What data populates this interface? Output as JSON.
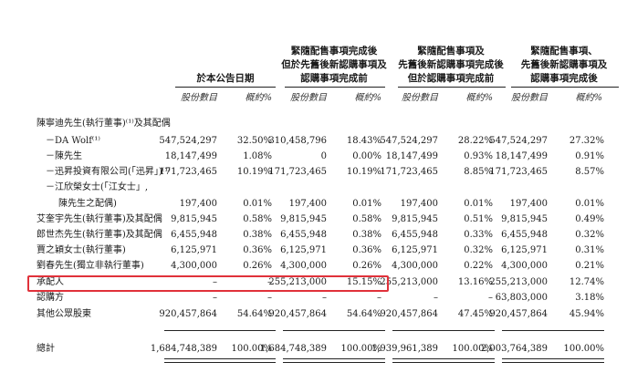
{
  "headers": [
    {
      "lines": [
        "於本公告日期"
      ]
    },
    {
      "lines": [
        "緊隨配售事項完成後",
        "但於先舊後新認購事項及",
        "認購事項完成前"
      ]
    },
    {
      "lines": [
        "緊隨配售事項及",
        "先舊後新認購事項完成後",
        "但於認購事項完成前"
      ]
    },
    {
      "lines": [
        "緊隨配售事項、",
        "先舊後新認購事項及",
        "認購事項完成後"
      ]
    }
  ],
  "subheaders": {
    "shares": "股份數目",
    "pct": "概約%"
  },
  "rows": [
    {
      "label": "陳寧迪先生(執行董事)⁽¹⁾及其配偶",
      "indent": 0,
      "vals": [
        "",
        "",
        "",
        "",
        "",
        "",
        "",
        ""
      ]
    },
    {
      "label": "－DA Wolf⁽¹⁾",
      "indent": 1,
      "vals": [
        "547,524,297",
        "32.50%",
        "310,458,796",
        "18.43%",
        "547,524,297",
        "28.22%",
        "547,524,297",
        "27.32%"
      ]
    },
    {
      "label": "－陳先生",
      "indent": 1,
      "vals": [
        "18,147,499",
        "1.08%",
        "0",
        "0.00%",
        "18,147,499",
        "0.93%",
        "18,147,499",
        "0.91%"
      ]
    },
    {
      "label": "－迅昇投資有限公司(「迅昇」)⁽¹⁾",
      "indent": 1,
      "vals": [
        "171,723,465",
        "10.19%",
        "171,723,465",
        "10.19%",
        "171,723,465",
        "8.85%",
        "171,723,465",
        "8.57%"
      ]
    },
    {
      "label": "－江欣榮女士(「江女士」,",
      "indent": 1,
      "vals": [
        "",
        "",
        "",
        "",
        "",
        "",
        "",
        ""
      ]
    },
    {
      "label": "陳先生之配偶)",
      "indent": 2,
      "vals": [
        "197,400",
        "0.01%",
        "197,400",
        "0.01%",
        "197,400",
        "0.01%",
        "197,400",
        "0.01%"
      ]
    },
    {
      "label": "艾奎宇先生(執行董事)及其配偶",
      "indent": 0,
      "vals": [
        "9,815,945",
        "0.58%",
        "9,815,945",
        "0.58%",
        "9,815,945",
        "0.51%",
        "9,815,945",
        "0.49%"
      ]
    },
    {
      "label": "郎世杰先生(執行董事)及其配偶",
      "indent": 0,
      "vals": [
        "6,455,948",
        "0.38%",
        "6,455,948",
        "0.38%",
        "6,455,948",
        "0.33%",
        "6,455,948",
        "0.32%"
      ]
    },
    {
      "label": "賈之穎女士(執行董事)",
      "indent": 0,
      "vals": [
        "6,125,971",
        "0.36%",
        "6,125,971",
        "0.36%",
        "6,125,971",
        "0.32%",
        "6,125,971",
        "0.31%"
      ]
    },
    {
      "label": "劉春先生(獨立非執行董事)",
      "indent": 0,
      "vals": [
        "4,300,000",
        "0.26%",
        "4,300,000",
        "0.26%",
        "4,300,000",
        "0.22%",
        "4,300,000",
        "0.21%"
      ]
    },
    {
      "label": "承配人",
      "indent": 0,
      "vals": [
        "–",
        "–",
        "255,213,000",
        "15.15%",
        "255,213,000",
        "13.16%",
        "255,213,000",
        "12.74%"
      ]
    },
    {
      "label": "認購方",
      "indent": 0,
      "vals": [
        "–",
        "–",
        "–",
        "–",
        "–",
        "–",
        "63,803,000",
        "3.18%"
      ]
    },
    {
      "label": "其他公眾股東",
      "indent": 0,
      "vals": [
        "920,457,864",
        "54.64%",
        "920,457,864",
        "54.64%",
        "920,457,864",
        "47.45%",
        "920,457,864",
        "45.94%"
      ]
    }
  ],
  "total": {
    "label": "總計",
    "vals": [
      "1,684,748,389",
      "100.00%",
      "1,684,748,389",
      "100.00%",
      "1,939,961,389",
      "100.00%",
      "2,003,764,389",
      "100.00%"
    ]
  }
}
